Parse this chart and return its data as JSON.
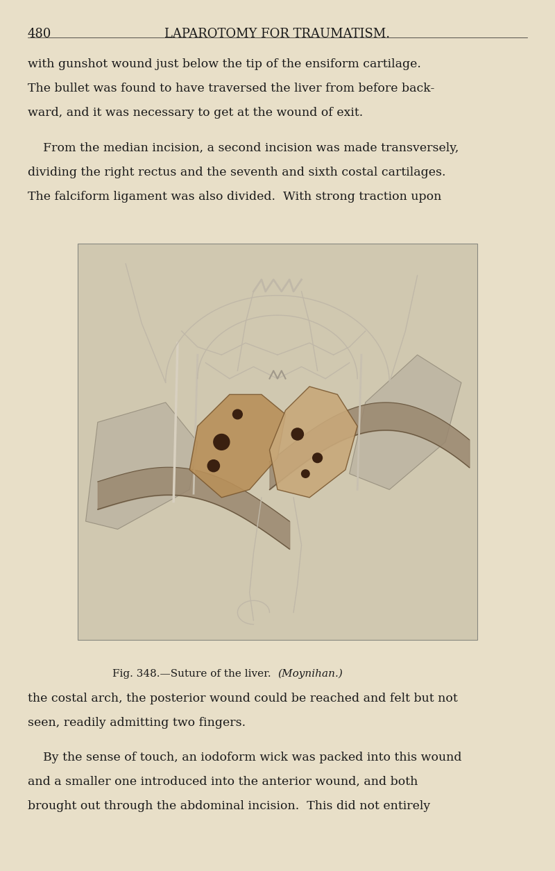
{
  "page_bg_color": "#e8dfc8",
  "page_number": "480",
  "chapter_title": "LAPAROTOMY FOR TRAUMATISM.",
  "text_color": "#1a1a1a",
  "header_fontsize": 13,
  "body_fontsize": 12.5,
  "page_number_fontsize": 13,
  "fig_caption_normal": "Fig. 348.—Suture of the liver.  ",
  "fig_caption_italic": "(Moynihan.)",
  "fig_caption_fontsize": 11,
  "image_bg": "#d0c8b0",
  "para1_lines": [
    "with gunshot wound just below the tip of the ensiform cartilage.",
    "The bullet was found to have traversed the liver from before back-",
    "ward, and it was necessary to get at the wound of exit."
  ],
  "para2_lines": [
    "    From the median incision, a second incision was made transversely,",
    "dividing the right rectus and the seventh and sixth costal cartilages.",
    "The falciform ligament was also divided.  With strong traction upon"
  ],
  "para3_lines": [
    "the costal arch, the posterior wound could be reached and felt but not",
    "seen, readily admitting two fingers."
  ],
  "para4_lines": [
    "    By the sense of touch, an iodoform wick was packed into this wound",
    "and a smaller one introduced into the anterior wound, and both",
    "brought out through the abdominal incision.  This did not entirely"
  ]
}
